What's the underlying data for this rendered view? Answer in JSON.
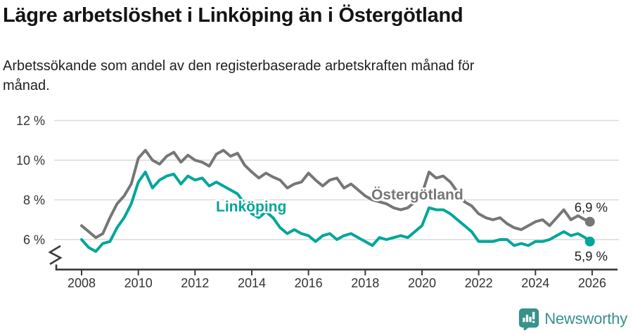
{
  "header": {
    "title": "Lägre arbetslöshet i Linköping än i Östergötland",
    "subtitle": "Arbetssökande som andel av den registerbaserade arbetskraften månad för månad."
  },
  "chart_data": {
    "type": "line",
    "title": "Lägre arbetslöshet i Linköping än i Östergötland",
    "subtitle": "Arbetssökande som andel av den registerbaserade arbetskraften månad för månad.",
    "xlabel": "",
    "ylabel": "",
    "unit": "%",
    "grid": "horizontal",
    "axis_break_bottom": true,
    "xlim": [
      2007.05,
      2026.95
    ],
    "ylim": [
      4.9,
      12.4
    ],
    "xticks": {
      "values": [
        2008,
        2010,
        2012,
        2014,
        2016,
        2018,
        2020,
        2022,
        2024,
        2026
      ],
      "labels": [
        "2008",
        "2010",
        "2012",
        "2014",
        "2016",
        "2018",
        "2020",
        "2022",
        "2024",
        "2026"
      ]
    },
    "yticks": {
      "values": [
        6,
        8,
        10,
        12
      ],
      "labels": [
        "6 %",
        "8 %",
        "10 %",
        "12 %"
      ]
    },
    "x": [
      2008,
      2008.25,
      2008.5,
      2008.75,
      2009,
      2009.25,
      2009.5,
      2009.75,
      2010,
      2010.25,
      2010.5,
      2010.75,
      2011,
      2011.25,
      2011.5,
      2011.75,
      2012,
      2012.25,
      2012.5,
      2012.75,
      2013,
      2013.25,
      2013.5,
      2013.75,
      2014,
      2014.25,
      2014.5,
      2014.75,
      2015,
      2015.25,
      2015.5,
      2015.75,
      2016,
      2016.25,
      2016.5,
      2016.75,
      2017,
      2017.25,
      2017.5,
      2017.75,
      2018,
      2018.25,
      2018.5,
      2018.75,
      2019,
      2019.25,
      2019.5,
      2019.75,
      2020,
      2020.25,
      2020.5,
      2020.75,
      2021,
      2021.25,
      2021.5,
      2021.75,
      2022,
      2022.25,
      2022.5,
      2022.75,
      2023,
      2023.25,
      2023.5,
      2023.75,
      2024,
      2024.25,
      2024.5,
      2024.75,
      2025,
      2025.25,
      2025.5,
      2025.75,
      2025.92
    ],
    "series": [
      {
        "name": "Östergötland",
        "color": "#767676",
        "end_label": "6,9 %",
        "end_value": 6.9,
        "values": [
          6.7,
          6.4,
          6.1,
          6.3,
          7.1,
          7.8,
          8.2,
          8.8,
          10.1,
          10.5,
          10.0,
          9.8,
          10.2,
          10.4,
          9.9,
          10.25,
          10.0,
          9.9,
          9.7,
          10.3,
          10.5,
          10.2,
          10.35,
          9.75,
          9.4,
          9.1,
          9.35,
          9.15,
          9.0,
          8.6,
          8.8,
          8.9,
          9.35,
          9.0,
          8.7,
          9.0,
          9.1,
          8.6,
          8.8,
          8.5,
          8.2,
          8.0,
          7.9,
          7.8,
          7.6,
          7.5,
          7.6,
          7.9,
          8.3,
          9.4,
          9.1,
          9.2,
          8.9,
          8.4,
          7.9,
          7.7,
          7.3,
          7.1,
          7.0,
          7.1,
          6.8,
          6.6,
          6.5,
          6.7,
          6.9,
          7.0,
          6.7,
          7.1,
          7.5,
          7.0,
          7.2,
          7.0,
          6.9
        ]
      },
      {
        "name": "Linköping",
        "color": "#00a69a",
        "end_label": "5,9 %",
        "end_value": 5.9,
        "values": [
          6.0,
          5.6,
          5.4,
          5.8,
          5.9,
          6.6,
          7.1,
          7.8,
          8.9,
          9.4,
          8.6,
          9.0,
          9.2,
          9.3,
          8.8,
          9.2,
          9.0,
          9.1,
          8.7,
          8.9,
          8.7,
          8.5,
          8.3,
          7.8,
          7.3,
          7.1,
          7.4,
          7.1,
          6.6,
          6.3,
          6.5,
          6.3,
          6.2,
          5.9,
          6.2,
          6.3,
          6.0,
          6.2,
          6.3,
          6.1,
          5.9,
          5.7,
          6.1,
          6.0,
          6.1,
          6.2,
          6.1,
          6.4,
          6.7,
          7.6,
          7.5,
          7.5,
          7.3,
          7.0,
          6.7,
          6.4,
          5.9,
          5.9,
          5.9,
          6.0,
          6.0,
          5.7,
          5.8,
          5.7,
          5.9,
          5.9,
          6.0,
          6.2,
          6.4,
          6.2,
          6.3,
          6.1,
          5.9
        ]
      }
    ]
  },
  "branding": {
    "name": "Newsworthy",
    "color": "#38918a"
  }
}
